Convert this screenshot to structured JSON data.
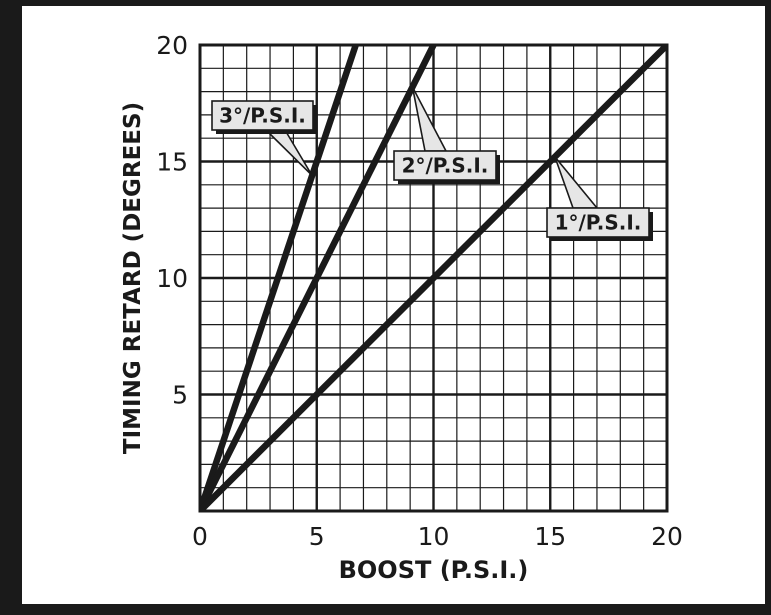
{
  "colors": {
    "frame": "#1a1a1a",
    "panel": "#ffffff",
    "ink": "#1a1a1a",
    "label_box": "#e6e6e6",
    "label_shadow": "#1a1a1a"
  },
  "chart_data": {
    "type": "line",
    "title": "",
    "xlabel": "BOOST (P.S.I.)",
    "ylabel": "TIMING RETARD (DEGREES)",
    "xlim": [
      0,
      20
    ],
    "ylim": [
      0,
      20
    ],
    "x_ticks": [
      0,
      5,
      10,
      15,
      20
    ],
    "y_ticks": [
      5,
      10,
      15,
      20
    ],
    "x_tick_labels": [
      "0",
      "5",
      "10",
      "15",
      "20"
    ],
    "y_tick_labels": [
      "5",
      "10",
      "15",
      "20"
    ],
    "grid": true,
    "minor_grid_step": 1,
    "major_grid_step": 5,
    "series": [
      {
        "name": "3°/P.S.I.",
        "slope": 3,
        "x": [
          0,
          6.67
        ],
        "y": [
          0,
          20
        ]
      },
      {
        "name": "2°/P.S.I.",
        "slope": 2,
        "x": [
          0,
          10
        ],
        "y": [
          0,
          20
        ]
      },
      {
        "name": "1°/P.S.I.",
        "slope": 1,
        "x": [
          0,
          20
        ],
        "y": [
          0,
          20
        ]
      }
    ],
    "annotations": [
      {
        "text": "3°/P.S.I.",
        "series": "3°/P.S.I.",
        "point": [
          4.8,
          14.4
        ]
      },
      {
        "text": "2°/P.S.I.",
        "series": "2°/P.S.I.",
        "point": [
          9.1,
          18.2
        ]
      },
      {
        "text": "1°/P.S.I.",
        "series": "1°/P.S.I.",
        "point": [
          15.2,
          15.2
        ]
      }
    ]
  }
}
